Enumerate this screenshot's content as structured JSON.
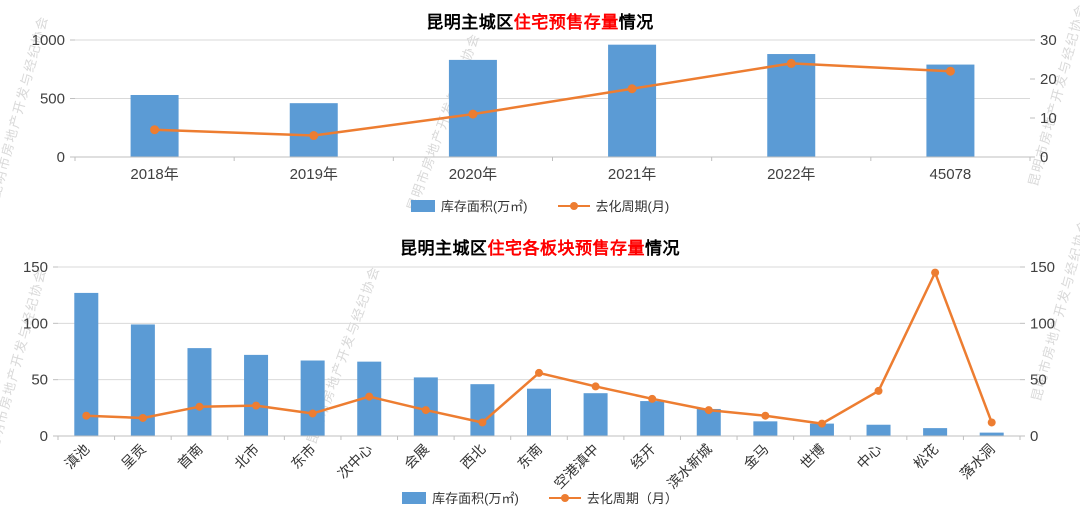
{
  "watermark": "昆明市房地产开发与经纪协会",
  "colors": {
    "bar": "#5B9BD5",
    "line": "#ED7D31",
    "title_highlight": "#FF0000"
  },
  "chart_data": [
    {
      "type": "bar",
      "combo": "bar+line",
      "title": "昆明主城区住宅预售存量情况",
      "title_parts": {
        "prefix": "昆明主城区",
        "highlight": "住宅预售存量",
        "suffix": "情况"
      },
      "categories": [
        "2018年",
        "2019年",
        "2020年",
        "2021年",
        "2022年",
        "45078"
      ],
      "series": [
        {
          "name": "库存面积(万㎡)",
          "type": "bar",
          "axis": "left",
          "color": "#5B9BD5",
          "values": [
            530,
            460,
            830,
            960,
            880,
            790
          ]
        },
        {
          "name": "去化周期(月)",
          "type": "line",
          "axis": "right",
          "color": "#ED7D31",
          "values": [
            7,
            5.5,
            11,
            17.5,
            24,
            22
          ]
        }
      ],
      "left_axis": {
        "min": 0,
        "max": 1000,
        "ticks": [
          0,
          500,
          1000
        ]
      },
      "right_axis": {
        "min": 0,
        "max": 30,
        "ticks": [
          0,
          10,
          20,
          30
        ]
      },
      "legend_position": "bottom",
      "grid": true
    },
    {
      "type": "bar",
      "combo": "bar+line",
      "title": "昆明主城区住宅各板块预售存量情况",
      "title_parts": {
        "prefix": "昆明主城区",
        "highlight": "住宅各板块预售存量",
        "suffix": "情况"
      },
      "categories": [
        "滇池",
        "呈贡",
        "首南",
        "北市",
        "东市",
        "次中心",
        "会展",
        "西北",
        "东南",
        "空港滇中",
        "经开",
        "滨水新城",
        "金马",
        "世博",
        "中心",
        "松花",
        "落水洞"
      ],
      "series": [
        {
          "name": "库存面积(万㎡)",
          "type": "bar",
          "axis": "left",
          "color": "#5B9BD5",
          "values": [
            127,
            99,
            78,
            72,
            67,
            66,
            52,
            46,
            42,
            38,
            31,
            24,
            13,
            11,
            10,
            7,
            3
          ]
        },
        {
          "name": "去化周期（月）",
          "type": "line",
          "axis": "right",
          "color": "#ED7D31",
          "values": [
            18,
            16,
            26,
            27,
            20,
            35,
            23,
            12,
            56,
            44,
            33,
            23,
            18,
            11,
            40,
            145,
            12
          ]
        }
      ],
      "left_axis": {
        "min": 0,
        "max": 150,
        "ticks": [
          0,
          50,
          100,
          150
        ]
      },
      "right_axis": {
        "min": 0,
        "max": 150,
        "ticks": [
          0,
          50,
          100,
          150
        ]
      },
      "legend_position": "bottom",
      "grid": true
    }
  ]
}
